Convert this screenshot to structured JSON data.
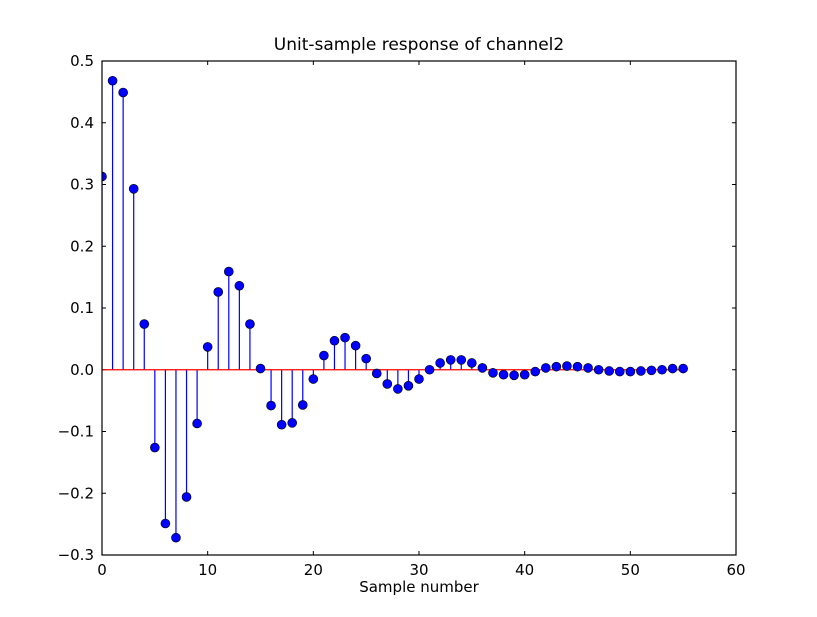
{
  "chart_data": {
    "type": "stem",
    "title": "Unit-sample response of channel2",
    "xlabel": "Sample number",
    "ylabel": "",
    "xlim": [
      0,
      60
    ],
    "ylim": [
      -0.3,
      0.5
    ],
    "xticks": [
      0,
      10,
      20,
      30,
      40,
      50,
      60
    ],
    "xtick_labels": [
      "0",
      "10",
      "20",
      "30",
      "40",
      "50",
      "60"
    ],
    "yticks": [
      -0.3,
      -0.2,
      -0.1,
      0.0,
      0.1,
      0.2,
      0.3,
      0.4,
      0.5
    ],
    "ytick_labels": [
      "−0.3",
      "−0.2",
      "−0.1",
      "0.0",
      "0.1",
      "0.2",
      "0.3",
      "0.4",
      "0.5"
    ],
    "grid": false,
    "colors": {
      "markers": "#0000ff",
      "stems": "#0000ff",
      "baseline": "#ff0000"
    },
    "x": [
      0,
      1,
      2,
      3,
      4,
      5,
      6,
      7,
      8,
      9,
      10,
      11,
      12,
      13,
      14,
      15,
      16,
      17,
      18,
      19,
      20,
      21,
      22,
      23,
      24,
      25,
      26,
      27,
      28,
      29,
      30,
      31,
      32,
      33,
      34,
      35,
      36,
      37,
      38,
      39,
      40,
      41,
      42,
      43,
      44,
      45,
      46,
      47,
      48,
      49,
      50,
      51,
      52,
      53,
      54,
      55
    ],
    "y": [
      0.313,
      0.468,
      0.449,
      0.293,
      0.074,
      -0.126,
      -0.249,
      -0.272,
      -0.206,
      -0.087,
      0.037,
      0.126,
      0.159,
      0.136,
      0.074,
      0.002,
      -0.058,
      -0.089,
      -0.086,
      -0.057,
      -0.015,
      0.023,
      0.047,
      0.052,
      0.039,
      0.018,
      -0.006,
      -0.023,
      -0.031,
      -0.026,
      -0.015,
      0.0,
      0.011,
      0.016,
      0.016,
      0.011,
      0.003,
      -0.005,
      -0.008,
      -0.009,
      -0.008,
      -0.003,
      0.003,
      0.005,
      0.006,
      0.005,
      0.003,
      0.0,
      -0.002,
      -0.003,
      -0.003,
      -0.002,
      -0.001,
      0.0,
      0.002,
      0.002
    ]
  }
}
